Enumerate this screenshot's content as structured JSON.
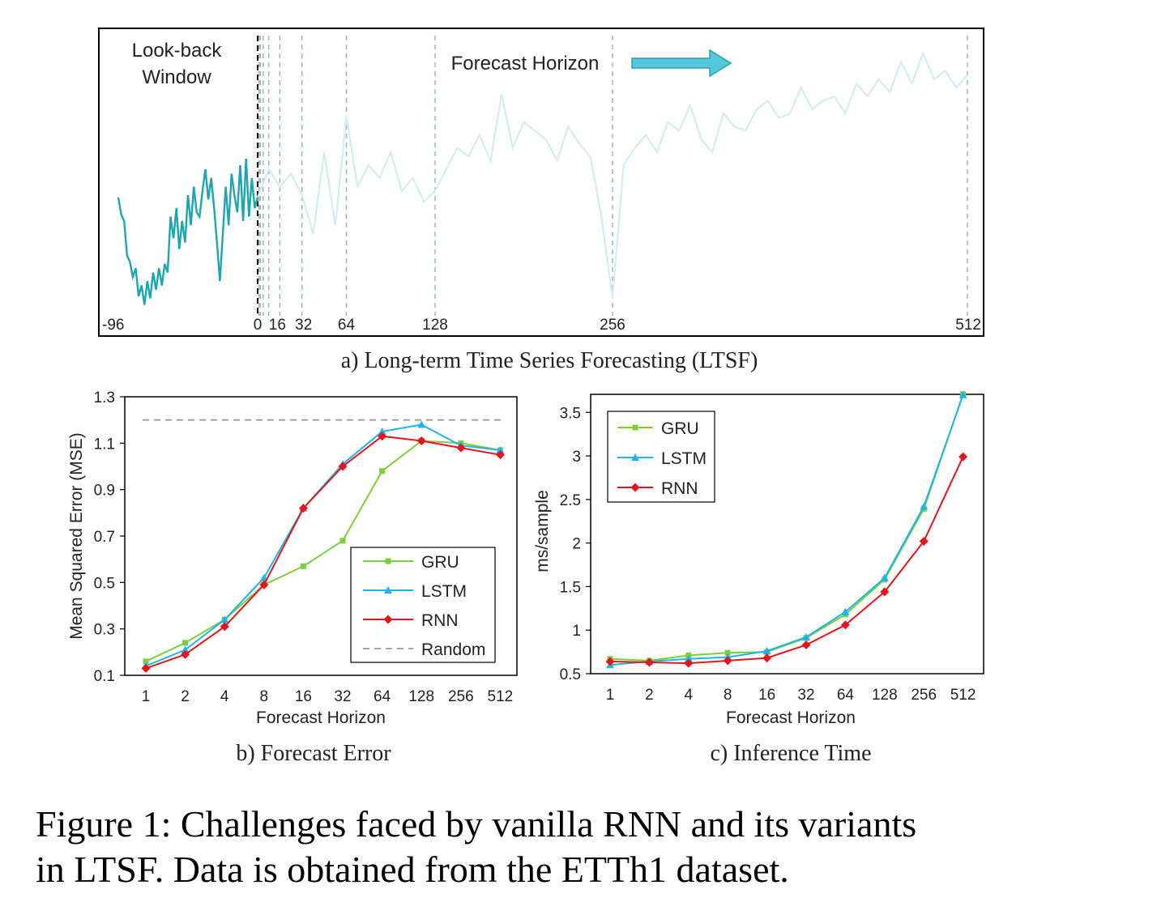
{
  "figure": {
    "caption_line1": "Figure 1: Challenges faced by vanilla RNN and its variants",
    "caption_line2": "in LTSF. Data is obtained from the ETTh1 dataset."
  },
  "colors": {
    "GRU": "#7ccf3c",
    "LSTM": "#1fb4ec",
    "RNN": "#e8141c",
    "Random": "#9a9a9a",
    "series_a": "#1ea6b0",
    "forecast_faded": "#d2eef0",
    "arrow": "#56c8dc"
  },
  "chart_data": [
    {
      "id": "a",
      "type": "line",
      "caption": "a) Long-term Time Series Forecasting (LTSF)",
      "annotations": [
        "Look-back",
        "Window",
        "Forecast Horizon"
      ],
      "x_ticks": [
        "-96",
        "0",
        "16",
        "32",
        "64",
        "128",
        "256",
        "512"
      ],
      "x_tick_values": [
        -96,
        0,
        16,
        32,
        64,
        128,
        256,
        512
      ],
      "horizon_markers": [
        1,
        2,
        4,
        8,
        16,
        32,
        64,
        128,
        256,
        512
      ],
      "y_axis_shown": false,
      "lookback_x": [
        -96,
        -94,
        -92,
        -90,
        -88,
        -86,
        -84,
        -82,
        -80,
        -78,
        -76,
        -74,
        -72,
        -70,
        -68,
        -66,
        -64,
        -62,
        -60,
        -58,
        -56,
        -54,
        -52,
        -50,
        -48,
        -46,
        -44,
        -42,
        -40,
        -38,
        -36,
        -34,
        -32,
        -30,
        -28,
        -26,
        -24,
        -22,
        -20,
        -18,
        -16,
        -14,
        -12,
        -10,
        -8,
        -6,
        -4,
        -2,
        0
      ],
      "lookback_y": [
        0.57,
        0.49,
        0.46,
        0.3,
        0.27,
        0.2,
        0.24,
        0.11,
        0.16,
        0.07,
        0.18,
        0.1,
        0.22,
        0.14,
        0.24,
        0.16,
        0.26,
        0.22,
        0.48,
        0.38,
        0.52,
        0.33,
        0.46,
        0.36,
        0.58,
        0.44,
        0.62,
        0.5,
        0.48,
        0.6,
        0.7,
        0.56,
        0.66,
        0.52,
        0.36,
        0.18,
        0.4,
        0.62,
        0.44,
        0.68,
        0.58,
        0.5,
        0.72,
        0.46,
        0.75,
        0.48,
        0.66,
        0.52,
        0.57
      ],
      "forecast_x": [
        0,
        8,
        16,
        24,
        32,
        40,
        48,
        56,
        64,
        72,
        80,
        88,
        96,
        104,
        112,
        120,
        128,
        136,
        144,
        152,
        160,
        168,
        176,
        184,
        192,
        200,
        208,
        216,
        224,
        232,
        240,
        248,
        256,
        264,
        272,
        280,
        288,
        296,
        304,
        312,
        320,
        328,
        336,
        344,
        352,
        360,
        368,
        376,
        384,
        392,
        400,
        408,
        416,
        424,
        432,
        440,
        448,
        456,
        464,
        472,
        480,
        488,
        496,
        504,
        512
      ],
      "forecast_y": [
        0.57,
        0.7,
        0.62,
        0.68,
        0.58,
        0.4,
        0.78,
        0.44,
        0.95,
        0.62,
        0.72,
        0.66,
        0.78,
        0.6,
        0.66,
        0.55,
        0.6,
        0.7,
        0.8,
        0.76,
        0.86,
        0.74,
        1.05,
        0.8,
        0.92,
        0.88,
        0.84,
        0.74,
        0.9,
        0.82,
        0.76,
        0.48,
        0.1,
        0.72,
        0.8,
        0.86,
        0.78,
        0.92,
        0.88,
        1.0,
        0.84,
        0.78,
        0.96,
        0.9,
        0.88,
        0.98,
        1.02,
        0.94,
        0.96,
        1.08,
        0.98,
        1.02,
        1.04,
        0.96,
        1.1,
        1.04,
        1.12,
        1.06,
        1.2,
        1.1,
        1.24,
        1.12,
        1.16,
        1.08,
        1.14
      ],
      "y_range": [
        0,
        1.3
      ]
    },
    {
      "id": "b",
      "type": "line",
      "caption": "b) Forecast Error",
      "xlabel": "Forecast Horizon",
      "ylabel": "Mean Squared Error (MSE)",
      "categories": [
        "1",
        "2",
        "4",
        "8",
        "16",
        "32",
        "64",
        "128",
        "256",
        "512"
      ],
      "ylim": [
        0.1,
        1.3
      ],
      "y_ticks": [
        "0.1",
        "0.3",
        "0.5",
        "0.7",
        "0.9",
        "1.1",
        "1.3"
      ],
      "y_tick_values": [
        0.1,
        0.3,
        0.5,
        0.7,
        0.9,
        1.1,
        1.3
      ],
      "legend_position": "bottom-right",
      "series": [
        {
          "name": "GRU",
          "marker": "square",
          "values": [
            0.16,
            0.24,
            0.34,
            0.49,
            0.57,
            0.68,
            0.98,
            1.11,
            1.1,
            1.07
          ]
        },
        {
          "name": "LSTM",
          "marker": "triangle",
          "values": [
            0.14,
            0.21,
            0.34,
            0.52,
            0.82,
            1.01,
            1.15,
            1.18,
            1.09,
            1.07
          ]
        },
        {
          "name": "RNN",
          "marker": "diamond",
          "values": [
            0.13,
            0.19,
            0.31,
            0.49,
            0.82,
            1.0,
            1.13,
            1.11,
            1.08,
            1.05
          ]
        },
        {
          "name": "Random",
          "marker": "none",
          "dashed": true,
          "values": [
            1.2,
            1.2,
            1.2,
            1.2,
            1.2,
            1.2,
            1.2,
            1.2,
            1.2,
            1.2
          ]
        }
      ]
    },
    {
      "id": "c",
      "type": "line",
      "caption": "c) Inference Time",
      "xlabel": "Forecast Horizon",
      "ylabel": "ms/sample",
      "categories": [
        "1",
        "2",
        "4",
        "8",
        "16",
        "32",
        "64",
        "128",
        "256",
        "512"
      ],
      "ylim": [
        0.5,
        3.8
      ],
      "y_ticks": [
        "0.5",
        "1",
        "1.5",
        "2",
        "2.5",
        "3",
        "3.5"
      ],
      "y_tick_values": [
        0.5,
        1,
        1.5,
        2,
        2.5,
        3,
        3.5
      ],
      "legend_position": "top-left",
      "series": [
        {
          "name": "GRU",
          "marker": "square",
          "values": [
            0.67,
            0.65,
            0.71,
            0.74,
            0.75,
            0.91,
            1.18,
            1.58,
            2.39,
            3.71
          ]
        },
        {
          "name": "LSTM",
          "marker": "triangle",
          "values": [
            0.6,
            0.64,
            0.67,
            0.69,
            0.76,
            0.92,
            1.21,
            1.6,
            2.42,
            3.7
          ]
        },
        {
          "name": "RNN",
          "marker": "diamond",
          "values": [
            0.64,
            0.63,
            0.62,
            0.65,
            0.68,
            0.83,
            1.06,
            1.44,
            2.02,
            2.99
          ]
        }
      ]
    }
  ]
}
